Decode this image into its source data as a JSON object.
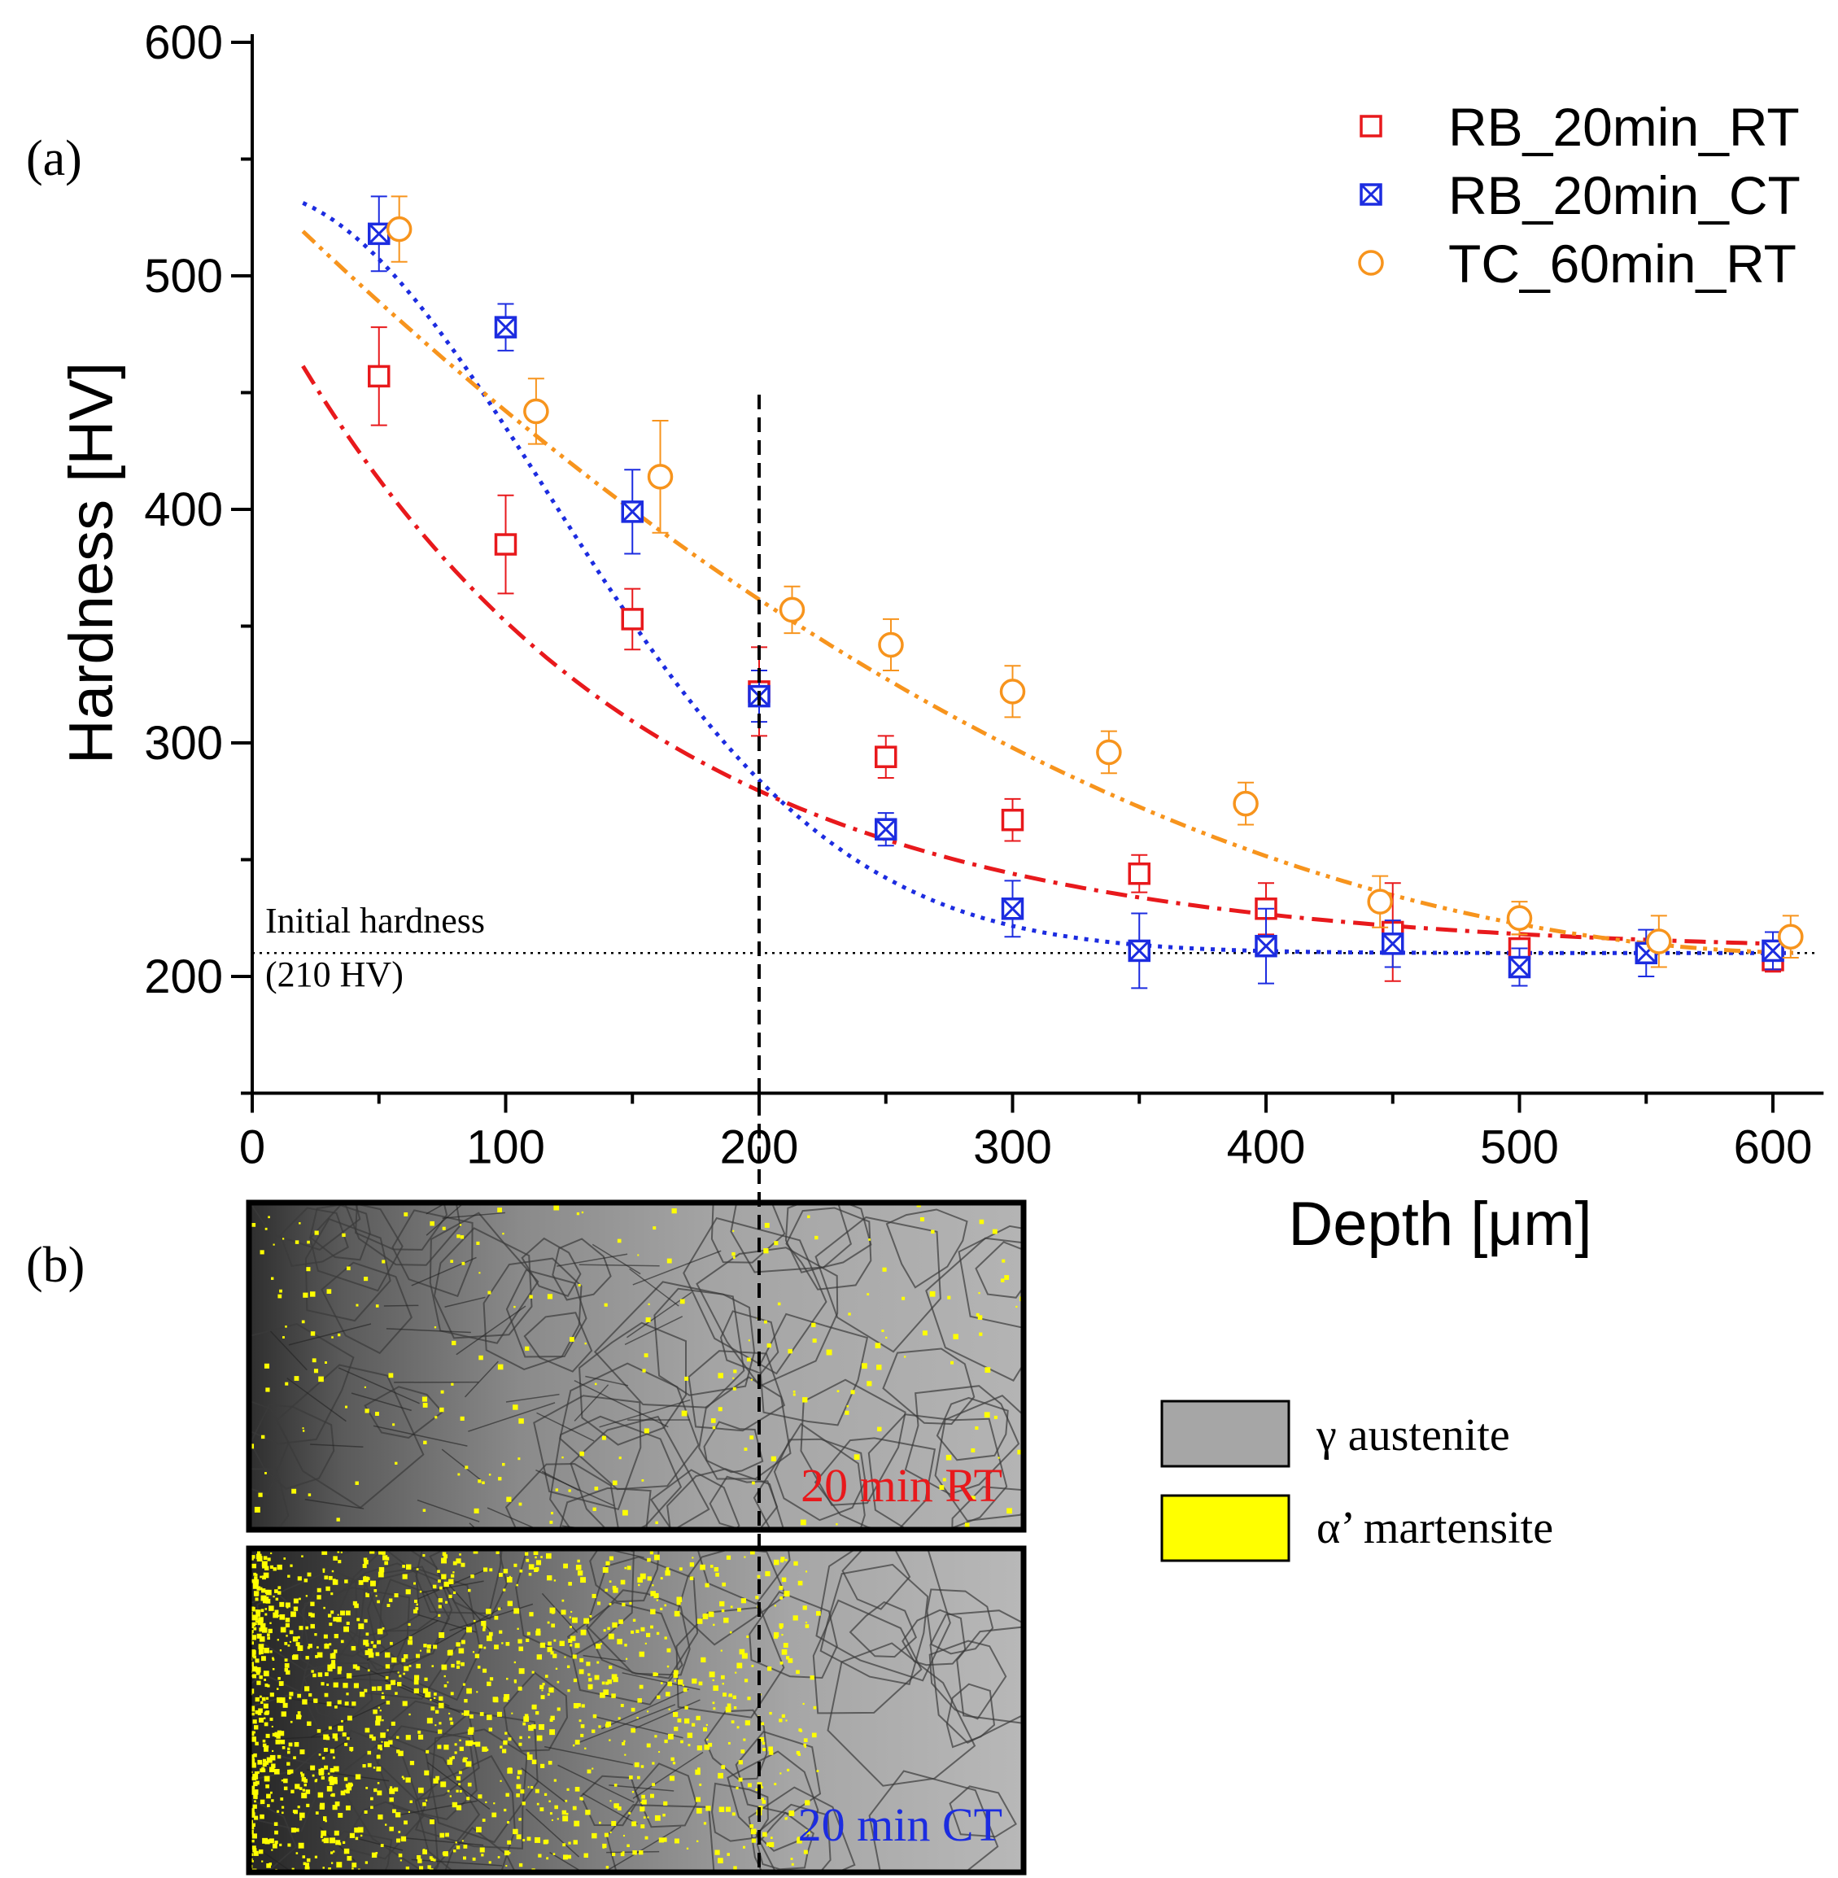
{
  "panels": {
    "a": "(a)",
    "b": "(b)"
  },
  "chart_data": {
    "type": "scatter",
    "xlabel": "Depth [μm]",
    "ylabel": "Hardness [HV]",
    "xlim": [
      0,
      620
    ],
    "ylim": [
      150,
      600
    ],
    "xticks": [
      "0",
      "100",
      "200",
      "300",
      "400",
      "500",
      "600"
    ],
    "yticks": [
      "200",
      "300",
      "400",
      "500",
      "600"
    ],
    "series": [
      {
        "name": "RB_20min_RT",
        "color": "#e8191c",
        "marker": "square",
        "x": [
          50,
          100,
          150,
          200,
          250,
          300,
          350,
          400,
          450,
          500,
          600
        ],
        "y": [
          457,
          385,
          353,
          322,
          294,
          267,
          244,
          229,
          219,
          212,
          207
        ],
        "err": [
          21,
          21,
          13,
          19,
          9,
          9,
          8,
          11,
          21,
          6,
          5
        ],
        "fit": {
          "x0": 20,
          "x1": 610,
          "a": 210,
          "b": 290,
          "c": 140,
          "style": "dash-dot"
        }
      },
      {
        "name": "RB_20min_CT",
        "color": "#1c2ce0",
        "marker": "crossed-square",
        "x": [
          50,
          100,
          150,
          200,
          250,
          300,
          350,
          400,
          450,
          500,
          550,
          600
        ],
        "y": [
          518,
          478,
          399,
          320,
          263,
          229,
          211,
          213,
          214,
          204,
          210,
          211
        ],
        "err": [
          16,
          10,
          18,
          11,
          7,
          12,
          16,
          16,
          10,
          8,
          10,
          8
        ],
        "fit": {
          "x0": 20,
          "x1": 610,
          "a": 210,
          "b": 326,
          "c": 27000,
          "style": "dotted"
        }
      },
      {
        "name": "TC_60min_RT",
        "color": "#f7941d",
        "marker": "circle",
        "x": [
          58,
          112,
          161,
          213,
          252,
          300,
          338,
          392,
          445,
          500,
          555,
          607
        ],
        "y": [
          520,
          442,
          414,
          357,
          342,
          322,
          296,
          274,
          232,
          225,
          215,
          217
        ],
        "err": [
          14,
          14,
          24,
          10,
          11,
          11,
          9,
          9,
          11,
          7,
          11,
          9
        ],
        "fit": {
          "x0": 20,
          "x1": 610,
          "a": 210,
          "b": 330,
          "c": 1.5e-06,
          "style": "dash-dot-dot"
        }
      }
    ],
    "annotations": {
      "initial_hardness_label": "Initial hardness",
      "initial_hardness_value_label": "(210 HV)",
      "initial_hardness": 210,
      "vertical_marker_depth": 200
    }
  },
  "micrographs": {
    "top_label": "20 min RT",
    "top_label_color": "#e8191c",
    "bottom_label": "20 min CT",
    "bottom_label_color": "#1c2ce0",
    "legend": [
      {
        "label": "γ austenite",
        "color": "#a6a6a6"
      },
      {
        "label": "α’ martensite",
        "color": "#ffff00"
      }
    ]
  }
}
